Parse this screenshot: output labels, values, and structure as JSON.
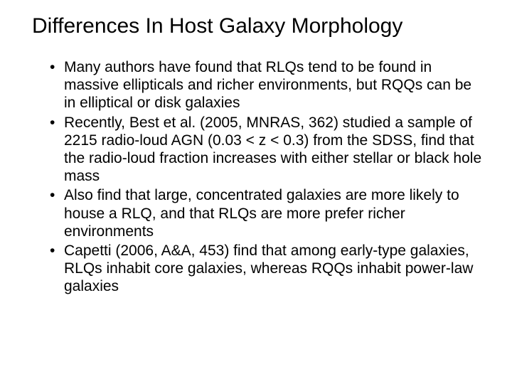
{
  "title": "Differences In Host Galaxy Morphology",
  "bullets": [
    "Many authors have found that RLQs tend to be found in massive ellipticals and richer environments, but RQQs can be in elliptical or disk galaxies",
    "Recently, Best et al. (2005, MNRAS, 362) studied a sample of 2215 radio-loud AGN (0.03 < z < 0.3) from the SDSS, find that the radio-loud fraction increases with either stellar or black hole mass",
    "Also find that large, concentrated galaxies are more likely to house a RLQ, and that RLQs are more prefer richer environments",
    "Capetti (2006, A&A, 453) find that among early-type galaxies, RLQs inhabit core galaxies, whereas RQQs inhabit power-law galaxies"
  ],
  "styling": {
    "background_color": "#ffffff",
    "text_color": "#000000",
    "title_fontsize": 30,
    "body_fontsize": 21,
    "font_family": "Arial"
  }
}
